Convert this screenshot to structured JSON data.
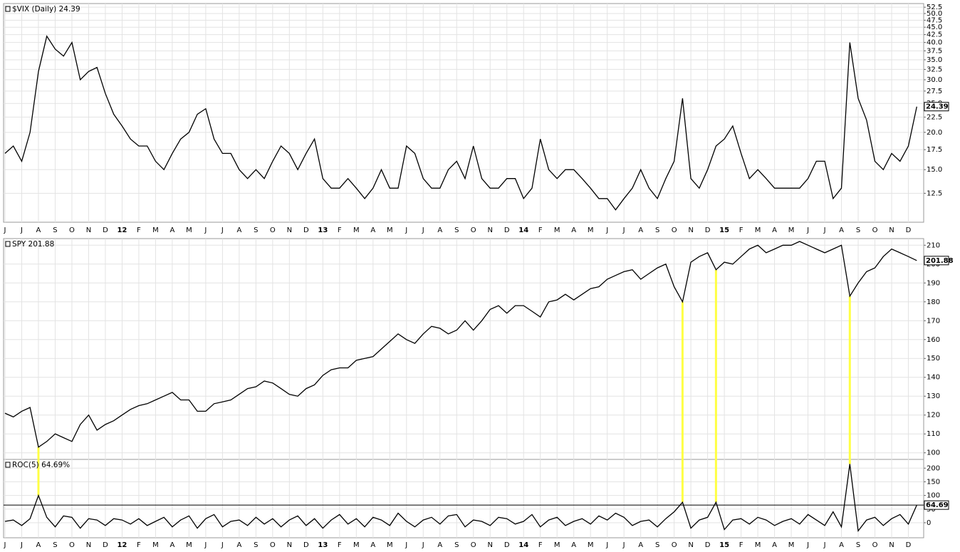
{
  "chart_data": [
    {
      "type": "line",
      "title": "$VIX (Daily) 24.39",
      "log_scale": true,
      "grid": true,
      "categories": [
        "J",
        null,
        "J",
        null,
        "A",
        null,
        "S",
        null,
        "O",
        null,
        "N",
        null,
        "D",
        null,
        "12",
        null,
        "F",
        null,
        "M",
        null,
        "A",
        null,
        "M",
        null,
        "J",
        null,
        "J",
        null,
        "A",
        null,
        "S",
        null,
        "O",
        null,
        "N",
        null,
        "D",
        null,
        "13",
        null,
        "F",
        null,
        "M",
        null,
        "A",
        null,
        "M",
        null,
        "J",
        null,
        "J",
        null,
        "A",
        null,
        "S",
        null,
        "O",
        null,
        "N",
        null,
        "D",
        null,
        "14",
        null,
        "F",
        null,
        "M",
        null,
        "A",
        null,
        "M",
        null,
        "J",
        null,
        "J",
        null,
        "A",
        null,
        "S",
        null,
        "O",
        null,
        "N",
        null,
        "D",
        null,
        "15",
        null,
        "F",
        null,
        "M",
        null,
        "A",
        null,
        "M",
        null,
        "J",
        null,
        "J",
        null,
        "A",
        null,
        "S",
        null,
        "O",
        null,
        "N",
        null,
        "D",
        null
      ],
      "series": [
        {
          "name": "$VIX",
          "color": "#000000",
          "values": [
            17,
            18,
            16,
            20,
            32,
            42,
            38,
            36,
            40,
            30,
            32,
            33,
            27,
            23,
            21,
            19,
            18,
            18,
            16,
            15,
            17,
            19,
            20,
            23,
            24,
            19,
            17,
            17,
            15,
            14,
            15,
            14,
            16,
            18,
            17,
            15,
            17,
            19,
            14,
            13,
            13,
            14,
            13,
            12,
            13,
            15,
            13,
            13,
            18,
            17,
            14,
            13,
            13,
            15,
            16,
            14,
            18,
            14,
            13,
            13,
            14,
            14,
            12,
            13,
            19,
            15,
            14,
            15,
            15,
            14,
            13,
            12,
            12,
            11,
            12,
            13,
            15,
            13,
            12,
            14,
            16,
            26,
            14,
            13,
            15,
            18,
            19,
            21,
            17,
            14,
            15,
            14,
            13,
            13,
            13,
            13,
            14,
            16,
            16,
            12,
            13,
            40,
            26,
            22,
            16,
            15,
            17,
            16,
            18,
            24.39
          ]
        }
      ],
      "ylim": [
        10,
        54
      ],
      "yticks": [
        12.5,
        {
          "value": 15,
          "label": "15.0"
        },
        17.5,
        {
          "value": 20,
          "label": "20.0"
        },
        22.5,
        {
          "value": 25,
          "label": "25.0"
        },
        27.5,
        {
          "value": 30,
          "label": "30.0"
        },
        32.5,
        {
          "value": 35,
          "label": "35.0"
        },
        37.5,
        {
          "value": 40,
          "label": "40.0"
        },
        42.5,
        {
          "value": 45,
          "label": "45.0"
        },
        47.5,
        {
          "value": 50,
          "label": "50.0"
        },
        52.5
      ]
    },
    {
      "type": "line",
      "title": "SPY 201.88",
      "grid": true,
      "series": [
        {
          "name": "SPY",
          "color": "#000000",
          "values": [
            121,
            119,
            122,
            124,
            103,
            106,
            110,
            108,
            106,
            115,
            120,
            112,
            115,
            117,
            120,
            123,
            125,
            126,
            128,
            130,
            132,
            128,
            128,
            122,
            122,
            126,
            127,
            128,
            131,
            134,
            135,
            138,
            137,
            134,
            131,
            130,
            134,
            136,
            141,
            144,
            145,
            145,
            149,
            150,
            151,
            155,
            159,
            163,
            160,
            158,
            163,
            167,
            166,
            163,
            165,
            170,
            165,
            170,
            176,
            178,
            174,
            178,
            178,
            175,
            172,
            180,
            181,
            184,
            181,
            184,
            187,
            188,
            192,
            194,
            196,
            197,
            192,
            195,
            198,
            200,
            188,
            180,
            201,
            204,
            206,
            197,
            201,
            200,
            204,
            208,
            210,
            206,
            208,
            210,
            210,
            212,
            210,
            208,
            206,
            208,
            210,
            183,
            190,
            196,
            198,
            204,
            208,
            206,
            204,
            201.88
          ]
        }
      ],
      "ylim": [
        96.5,
        213.5
      ],
      "yticks": [
        100,
        110,
        120,
        130,
        140,
        150,
        160,
        170,
        180,
        190,
        200,
        210
      ]
    },
    {
      "type": "line",
      "title": "ROC(5) 64.69%",
      "grid": true,
      "highlight_color": "#ffff44",
      "categories": [
        "J",
        null,
        "J",
        null,
        "A",
        null,
        "S",
        null,
        "O",
        null,
        "N",
        null,
        "D",
        null,
        "12",
        null,
        "F",
        null,
        "M",
        null,
        "A",
        null,
        "M",
        null,
        "J",
        null,
        "J",
        null,
        "A",
        null,
        "S",
        null,
        "O",
        null,
        "N",
        null,
        "D",
        null,
        "13",
        null,
        "F",
        null,
        "M",
        null,
        "A",
        null,
        "M",
        null,
        "J",
        null,
        "J",
        null,
        "A",
        null,
        "S",
        null,
        "O",
        null,
        "N",
        null,
        "D",
        null,
        "14",
        null,
        "F",
        null,
        "M",
        null,
        "A",
        null,
        "M",
        null,
        "J",
        null,
        "J",
        null,
        "A",
        null,
        "S",
        null,
        "O",
        null,
        "N",
        null,
        "D",
        null,
        "15",
        null,
        "F",
        null,
        "M",
        null,
        "A",
        null,
        "M",
        null,
        "J",
        null,
        "J",
        null,
        "A",
        null,
        "S",
        null,
        "O",
        null,
        "N",
        null,
        "D",
        null
      ],
      "series": [
        {
          "name": "ROC(5)",
          "color": "#000000",
          "values": [
            5,
            10,
            -10,
            15,
            100,
            20,
            -15,
            25,
            20,
            -20,
            15,
            10,
            -10,
            15,
            10,
            -5,
            15,
            -10,
            5,
            20,
            -15,
            10,
            25,
            -20,
            15,
            30,
            -15,
            5,
            10,
            -10,
            20,
            -5,
            15,
            -15,
            10,
            25,
            -10,
            15,
            -20,
            10,
            30,
            -5,
            15,
            -15,
            20,
            10,
            -10,
            35,
            5,
            -15,
            10,
            20,
            -5,
            25,
            30,
            -15,
            10,
            5,
            -10,
            20,
            15,
            -5,
            5,
            30,
            -15,
            10,
            20,
            -10,
            5,
            15,
            -5,
            25,
            10,
            35,
            20,
            -10,
            5,
            10,
            -15,
            15,
            40,
            75,
            -20,
            10,
            20,
            75,
            -25,
            10,
            15,
            -5,
            20,
            10,
            -10,
            5,
            15,
            -5,
            30,
            10,
            -10,
            40,
            -15,
            215,
            -30,
            10,
            20,
            -10,
            15,
            30,
            -5,
            64.69
          ]
        }
      ],
      "ylim": [
        -55,
        232
      ],
      "yticks": [
        0,
        50,
        100,
        150,
        200
      ]
    }
  ]
}
